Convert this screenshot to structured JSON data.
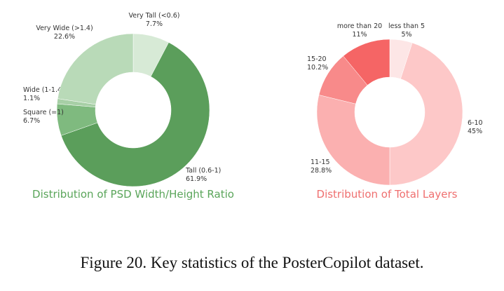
{
  "caption": "Figure 20. Key statistics of the PosterCopilot dataset.",
  "chart_data": [
    {
      "type": "pie",
      "title": "Distribution of PSD Width/Height Ratio",
      "title_color": "#5aa55a",
      "donut": true,
      "slices": [
        {
          "label": "Very Tall (<0.6)",
          "value_label": "7.7%",
          "value": 7.7,
          "color": "#d7ead6"
        },
        {
          "label": "Tall (0.6-1)",
          "value_label": "61.9%",
          "value": 61.9,
          "color": "#5b9e5b"
        },
        {
          "label": "Square (=1)",
          "value_label": "6.7%",
          "value": 6.7,
          "color": "#7fba7f"
        },
        {
          "label": "Wide (1-1.4)",
          "value_label": "1.1%",
          "value": 1.1,
          "color": "#a7cfa6"
        },
        {
          "label": "Very Wide (>1.4)",
          "value_label": "22.6%",
          "value": 22.6,
          "color": "#b9dab8"
        }
      ]
    },
    {
      "type": "pie",
      "title": "Distribution of Total Layers",
      "title_color": "#ef6f6f",
      "donut": true,
      "slices": [
        {
          "label": "less than 5",
          "value_label": "5%",
          "value": 5,
          "color": "#fde6e6"
        },
        {
          "label": "6-10",
          "value_label": "45%",
          "value": 45,
          "color": "#fdc8c8"
        },
        {
          "label": "11-15",
          "value_label": "28.8%",
          "value": 28.8,
          "color": "#fbb0b0"
        },
        {
          "label": "15-20",
          "value_label": "10.2%",
          "value": 10.2,
          "color": "#f88a8a"
        },
        {
          "label": "more than 20",
          "value_label": "11%",
          "value": 11,
          "color": "#f56565"
        }
      ]
    }
  ]
}
